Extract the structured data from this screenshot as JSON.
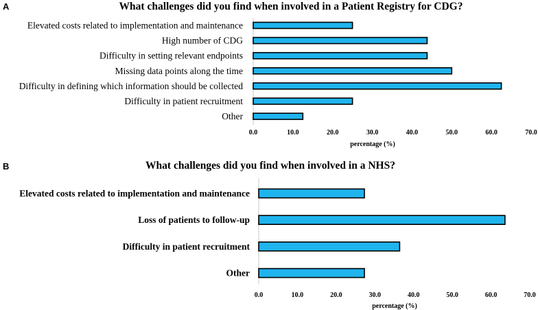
{
  "chart_data": [
    {
      "panel": "A",
      "type": "bar",
      "orientation": "horizontal",
      "title": "What challenges did you find when involved in a Patient Registry for CDG?",
      "categories": [
        "Elevated costs related to implementation and maintenance",
        "High number of CDG",
        "Difficulty in setting relevant endpoints",
        "Missing data points along the time",
        "Difficulty in defining which information should be collected",
        "Difficulty in patient recruitment",
        "Other"
      ],
      "values": [
        25.0,
        43.8,
        43.8,
        50.0,
        62.5,
        25.0,
        12.5
      ],
      "xlabel": "percentage (%)",
      "xlim": [
        0,
        70
      ],
      "xticks": [
        "0.0",
        "10.0",
        "20.0",
        "30.0",
        "40.0",
        "50.0",
        "60.0",
        "70.0"
      ],
      "grid": false,
      "color": "#1fb4ee"
    },
    {
      "panel": "B",
      "type": "bar",
      "orientation": "horizontal",
      "title": "What challenges did you find when involved in a NHS?",
      "categories": [
        "Elevated costs related to implementation and maintenance",
        "Loss of patients to follow-up",
        "Difficulty in patient recruitment",
        "Other"
      ],
      "values": [
        27.3,
        63.6,
        36.4,
        27.3
      ],
      "xlabel": "percentage (%)",
      "xlim": [
        0,
        70
      ],
      "xticks": [
        "0.0",
        "10.0",
        "20.0",
        "30.0",
        "40.0",
        "50.0",
        "60.0",
        "70.0"
      ],
      "grid": false,
      "color": "#1fb4ee"
    }
  ]
}
